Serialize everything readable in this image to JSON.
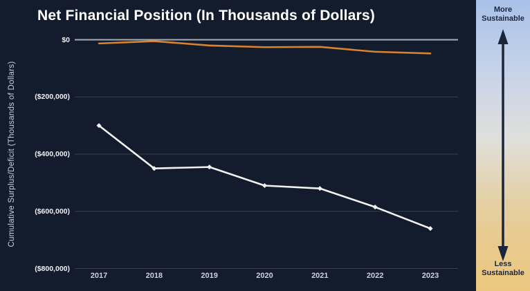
{
  "title": "Net Financial Position (In Thousands of Dollars)",
  "sidebar": {
    "more_label": "More Sustainable",
    "less_label": "Less Sustainable"
  },
  "colors": {
    "background": "#131c2c",
    "orange_line": "#d9832f",
    "white_line": "#f2f2f2",
    "gridline": "#39404f",
    "zero_line": "#a7adb8",
    "sidebar_gradient_top": "#a9c1e8",
    "sidebar_gradient_middle": "#e0dfdb",
    "sidebar_gradient_bottom": "#ecc87e",
    "sidebar_text": "#1b2539"
  },
  "chart_data": {
    "type": "line",
    "title": "Net Financial Position (In Thousands of Dollars)",
    "xlabel": "",
    "ylabel": "Cumulative Surplus/Deficit (Thousands of Dollars)",
    "categories": [
      "2017",
      "2018",
      "2019",
      "2020",
      "2021",
      "2022",
      "2023"
    ],
    "series": [
      {
        "name": "orange_line",
        "color": "#d9832f",
        "markers": false,
        "values": [
          -13000,
          -5000,
          -20000,
          -26000,
          -25000,
          -42000,
          -48000
        ]
      },
      {
        "name": "white_line",
        "color": "#f2f2f2",
        "markers": true,
        "values": [
          -300000,
          -450000,
          -445000,
          -510000,
          -520000,
          -585000,
          -660000
        ]
      }
    ],
    "ylim": [
      -800000,
      0
    ],
    "y_ticks": [
      {
        "value": 0,
        "label": "$0"
      },
      {
        "value": -200000,
        "label": "($200,000)"
      },
      {
        "value": -400000,
        "label": "($400,000)"
      },
      {
        "value": -600000,
        "label": "($600,000)"
      },
      {
        "value": -800000,
        "label": "($800,000)"
      }
    ],
    "grid": true,
    "legend_position": "none"
  }
}
